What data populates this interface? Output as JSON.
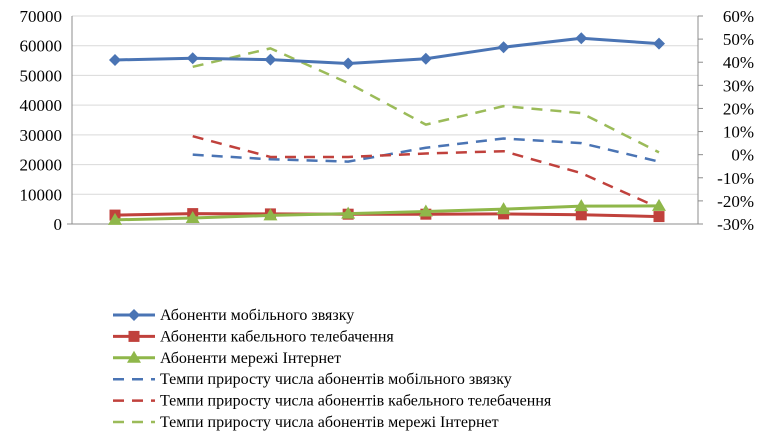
{
  "chart_data": {
    "type": "line",
    "title": "",
    "xlabel": "",
    "ylabel": "",
    "x_count": 8,
    "y_left": {
      "lim": [
        0,
        70000
      ],
      "ticks": [
        "0",
        "10000",
        "20000",
        "30000",
        "40000",
        "50000",
        "60000",
        "70000"
      ]
    },
    "y_right": {
      "lim": [
        -30,
        60
      ],
      "ticks": [
        "-30%",
        "-20%",
        "-10%",
        "0%",
        "10%",
        "20%",
        "30%",
        "40%",
        "50%",
        "60%"
      ]
    },
    "grid": "horizontal",
    "legend_position": "bottom",
    "series": [
      {
        "name": "Абоненти мобільного звязку",
        "axis": "left",
        "style": "solid",
        "marker": "diamond",
        "color": "#4a74b4",
        "values": [
          55200,
          55800,
          55300,
          54000,
          55600,
          59500,
          62500,
          60700
        ]
      },
      {
        "name": "Абоненти кабельного телебачення",
        "axis": "left",
        "style": "solid",
        "marker": "square",
        "color": "#c0413c",
        "values": [
          3000,
          3500,
          3400,
          3300,
          3300,
          3400,
          3100,
          2500
        ]
      },
      {
        "name": "Абоненти мережі Інтернет",
        "axis": "left",
        "style": "solid",
        "marker": "triangle",
        "color": "#8fb74a",
        "values": [
          1400,
          2000,
          2900,
          3500,
          4200,
          5000,
          6000,
          6100
        ]
      },
      {
        "name": "Темпи приросту числа абонентів мобільного звязку",
        "axis": "right",
        "style": "dashed",
        "color": "#4a74b4",
        "values": [
          null,
          0,
          -2,
          -3,
          3,
          7,
          5,
          -3
        ]
      },
      {
        "name": "Темпи приросту числа абонентів кабельного телебачення",
        "axis": "right",
        "style": "dashed",
        "color": "#c0413c",
        "values": [
          null,
          8,
          -1,
          -1,
          0.5,
          1.5,
          -8,
          -23
        ]
      },
      {
        "name": "Темпи приросту числа абонентів мережі Інтернет",
        "axis": "right",
        "style": "dashed",
        "color": "#9bbb59",
        "values": [
          null,
          38,
          46,
          31,
          13,
          21,
          18,
          1
        ]
      }
    ]
  }
}
